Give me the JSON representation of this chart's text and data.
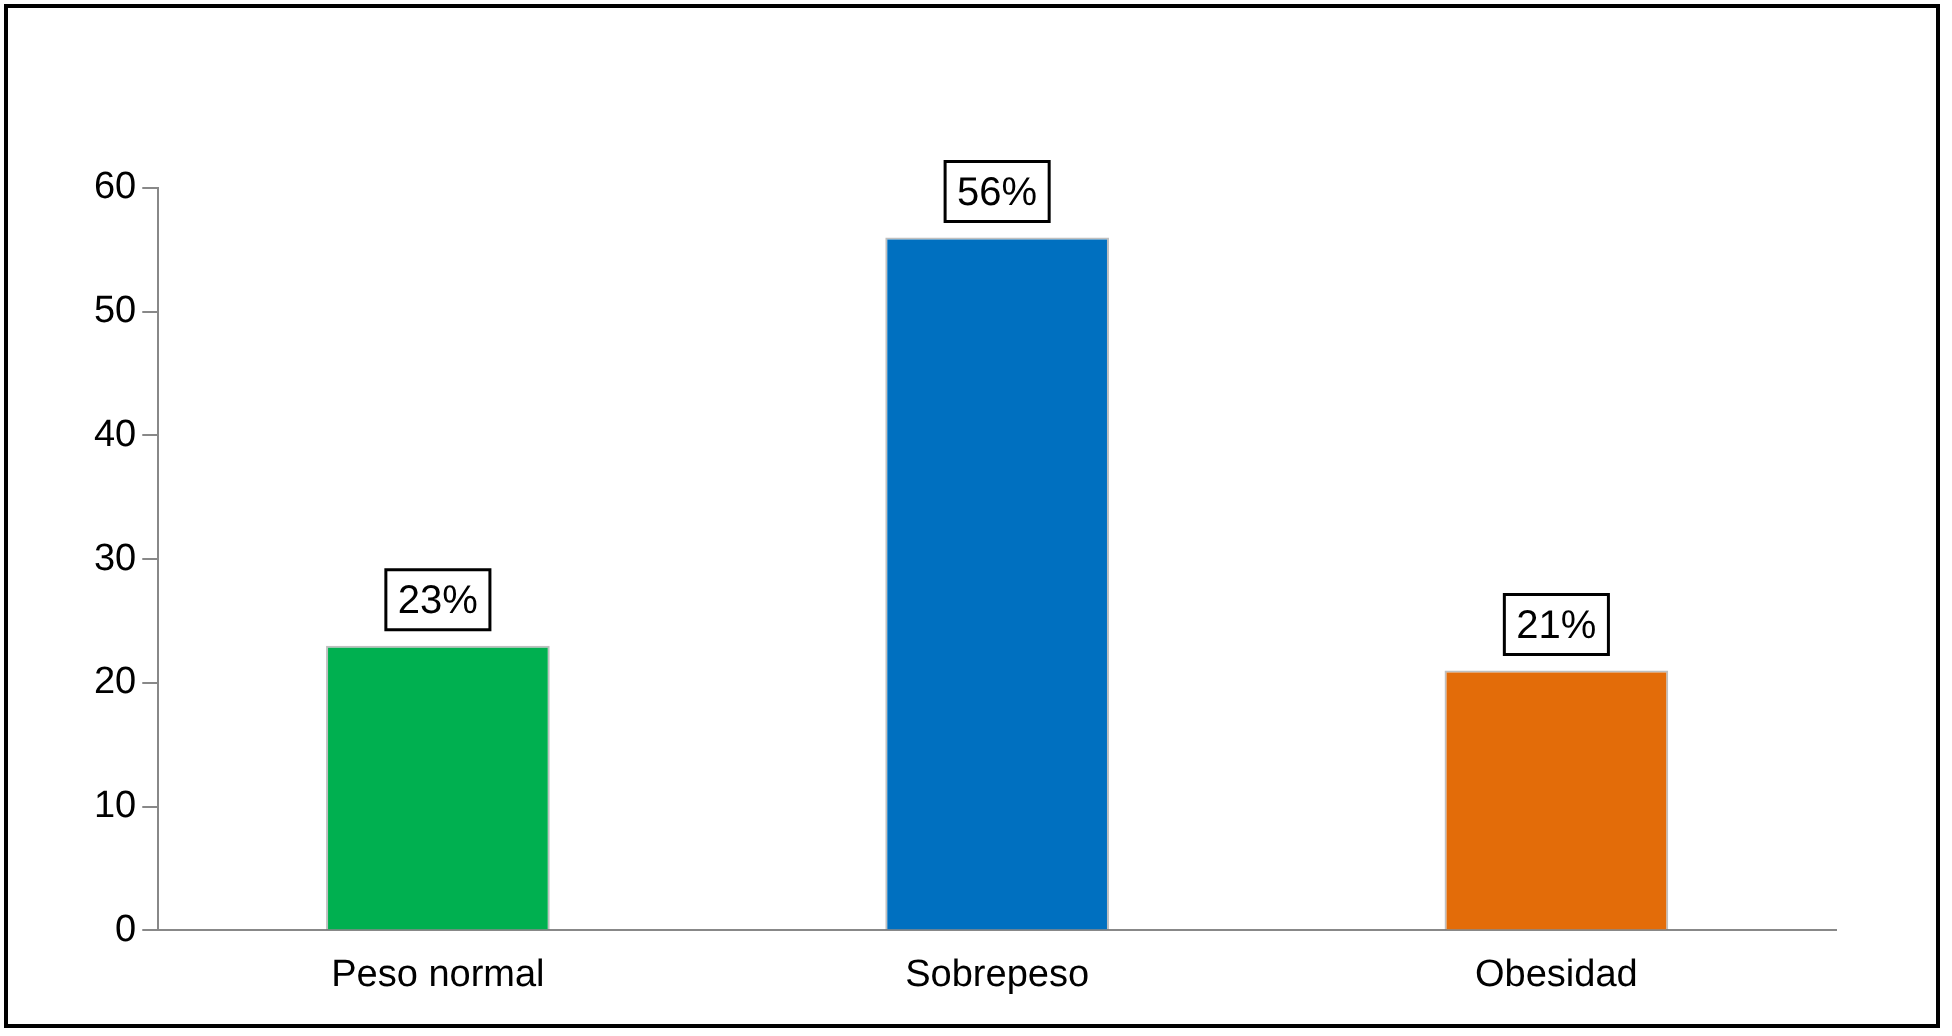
{
  "chart_data": {
    "type": "bar",
    "categories": [
      "Peso normal",
      "Sobrepeso",
      "Obesidad"
    ],
    "values": [
      23,
      56,
      21
    ],
    "colors": [
      "#00b050",
      "#0070c0",
      "#e36c09"
    ],
    "value_labels": [
      "23%",
      "56%",
      "21%"
    ],
    "ylim": [
      0,
      60
    ],
    "yticks": [
      0,
      10,
      20,
      30,
      40,
      50,
      60
    ],
    "grid": false,
    "legend": false
  }
}
